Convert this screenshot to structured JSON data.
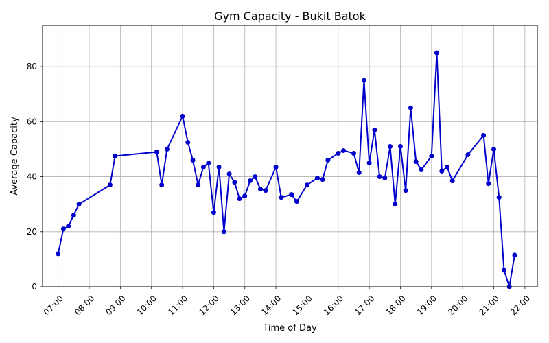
{
  "chart_data": {
    "type": "line",
    "title": "Gym Capacity - Bukit Batok",
    "xlabel": "Time of Day",
    "ylabel": "Average Capacity",
    "x_unit": "hours",
    "xlim": [
      6.5,
      22.4
    ],
    "ylim": [
      0,
      95
    ],
    "grid": true,
    "line_color": "#0000cc",
    "x_ticks": [
      {
        "value": 7,
        "label": "07:00"
      },
      {
        "value": 8,
        "label": "08:00"
      },
      {
        "value": 9,
        "label": "09:00"
      },
      {
        "value": 10,
        "label": "10:00"
      },
      {
        "value": 11,
        "label": "11:00"
      },
      {
        "value": 12,
        "label": "12:00"
      },
      {
        "value": 13,
        "label": "13:00"
      },
      {
        "value": 14,
        "label": "14:00"
      },
      {
        "value": 15,
        "label": "15:00"
      },
      {
        "value": 16,
        "label": "16:00"
      },
      {
        "value": 17,
        "label": "17:00"
      },
      {
        "value": 18,
        "label": "18:00"
      },
      {
        "value": 19,
        "label": "19:00"
      },
      {
        "value": 20,
        "label": "20:00"
      },
      {
        "value": 21,
        "label": "21:00"
      },
      {
        "value": 22,
        "label": "22:00"
      }
    ],
    "y_ticks": [
      {
        "value": 0,
        "label": "0"
      },
      {
        "value": 20,
        "label": "20"
      },
      {
        "value": 40,
        "label": "40"
      },
      {
        "value": 60,
        "label": "60"
      },
      {
        "value": 80,
        "label": "80"
      }
    ],
    "series": [
      {
        "x": [
          7.0,
          7.17,
          7.33,
          7.5,
          7.67,
          8.67,
          8.83,
          10.17,
          10.33,
          10.5,
          11.0,
          11.17,
          11.33,
          11.5,
          11.67,
          11.83,
          12.0,
          12.17,
          12.33,
          12.5,
          12.67,
          12.83,
          13.0,
          13.17,
          13.33,
          13.5,
          13.67,
          14.0,
          14.17,
          14.5,
          14.67,
          15.0,
          15.33,
          15.5,
          15.67,
          16.0,
          16.17,
          16.5,
          16.67,
          16.83,
          17.0,
          17.17,
          17.33,
          17.5,
          17.67,
          17.83,
          18.0,
          18.17,
          18.33,
          18.5,
          18.67,
          19.0,
          19.17,
          19.33,
          19.5,
          19.67,
          20.17,
          20.67,
          20.83,
          21.0,
          21.17,
          21.33,
          21.5,
          21.67
        ],
        "y": [
          12,
          21,
          22,
          26,
          30,
          37,
          47.5,
          49,
          37,
          50,
          62,
          52.5,
          46,
          37,
          43.5,
          45,
          27,
          43.5,
          20,
          41,
          38,
          32,
          33,
          38.5,
          40,
          35.5,
          35,
          43.5,
          32.5,
          33.5,
          31,
          37,
          39.5,
          39,
          46,
          48.5,
          49.5,
          48.5,
          41.5,
          75,
          45,
          57,
          40,
          39.5,
          51,
          30,
          51,
          35,
          65,
          45.5,
          42.5,
          47.5,
          85,
          42,
          43.5,
          38.5,
          48,
          55,
          37.5,
          50,
          32.5,
          6,
          0,
          11.5
        ]
      }
    ]
  }
}
